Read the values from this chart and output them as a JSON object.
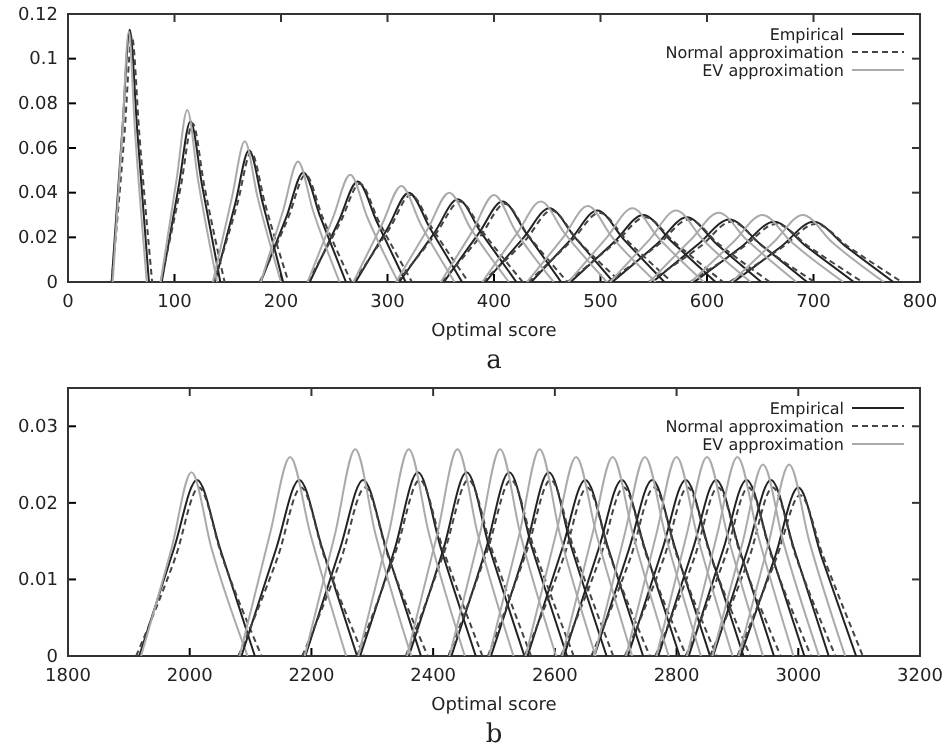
{
  "chart_data": [
    {
      "type": "line",
      "xlabel": "Optimal score",
      "annotations": [
        "a"
      ],
      "xlim": [
        0,
        800
      ],
      "xticks": [
        0,
        100,
        200,
        300,
        400,
        500,
        600,
        700,
        800
      ],
      "ylim": [
        0,
        0.12
      ],
      "yticks": [
        0,
        0.02,
        0.04,
        0.06,
        0.08,
        0.1,
        0.12
      ],
      "legend": "top right",
      "series": [
        {
          "name": "Empirical",
          "color": "#222222",
          "line_style": "solid",
          "x": [
            41,
            51,
            58,
            65,
            76
          ],
          "values": [
            0,
            0.068,
            0.113,
            0.068,
            0
          ]
        },
        {
          "name": "Normal approximation",
          "color": "#444444",
          "line_style": "dashed",
          "x": [
            41,
            53,
            60,
            67,
            79
          ],
          "values": [
            0,
            0.066,
            0.11,
            0.066,
            0
          ]
        },
        {
          "name": "EV approximation",
          "color": "#aaaaaa",
          "line_style": "solid",
          "x": [
            42,
            51,
            57,
            63,
            74
          ],
          "values": [
            0,
            0.067,
            0.112,
            0.067,
            0
          ]
        },
        {
          "color": "#222222",
          "line_style": "solid",
          "x": [
            88,
            104,
            115,
            126,
            143
          ],
          "values": [
            0,
            0.043,
            0.072,
            0.043,
            0
          ]
        },
        {
          "color": "#222222",
          "line_style": "solid",
          "x": [
            138,
            157,
            170,
            183,
            202
          ],
          "values": [
            0,
            0.035,
            0.059,
            0.035,
            0
          ]
        },
        {
          "color": "#222222",
          "line_style": "solid",
          "x": [
            181,
            205,
            221,
            237,
            261
          ],
          "values": [
            0,
            0.029,
            0.049,
            0.029,
            0
          ]
        },
        {
          "color": "#222222",
          "line_style": "solid",
          "x": [
            227,
            254,
            272,
            290,
            317
          ],
          "values": [
            0,
            0.027,
            0.045,
            0.027,
            0
          ]
        },
        {
          "color": "#222222",
          "line_style": "solid",
          "x": [
            270,
            300,
            320,
            340,
            370
          ],
          "values": [
            0,
            0.024,
            0.04,
            0.024,
            0
          ]
        },
        {
          "color": "#222222",
          "line_style": "solid",
          "x": [
            311,
            344,
            366,
            388,
            421
          ],
          "values": [
            0,
            0.022,
            0.037,
            0.022,
            0
          ]
        },
        {
          "color": "#222222",
          "line_style": "solid",
          "x": [
            353,
            386,
            408,
            430,
            463
          ],
          "values": [
            0,
            0.022,
            0.036,
            0.022,
            0
          ]
        },
        {
          "color": "#222222",
          "line_style": "solid",
          "x": [
            392,
            428,
            452,
            476,
            512
          ],
          "values": [
            0,
            0.02,
            0.033,
            0.02,
            0
          ]
        },
        {
          "color": "#222222",
          "line_style": "solid",
          "x": [
            435,
            472,
            497,
            522,
            560
          ],
          "values": [
            0,
            0.019,
            0.032,
            0.019,
            0
          ]
        },
        {
          "color": "#222222",
          "line_style": "solid",
          "x": [
            472,
            513,
            540,
            567,
            608
          ],
          "values": [
            0,
            0.018,
            0.03,
            0.018,
            0
          ]
        },
        {
          "color": "#222222",
          "line_style": "solid",
          "x": [
            511,
            553,
            581,
            609,
            651
          ],
          "values": [
            0,
            0.017,
            0.029,
            0.017,
            0
          ]
        },
        {
          "color": "#222222",
          "line_style": "solid",
          "x": [
            549,
            592,
            621,
            650,
            694
          ],
          "values": [
            0,
            0.017,
            0.028,
            0.017,
            0
          ]
        },
        {
          "color": "#222222",
          "line_style": "solid",
          "x": [
            588,
            633,
            663,
            693,
            738
          ],
          "values": [
            0,
            0.016,
            0.027,
            0.016,
            0
          ]
        },
        {
          "color": "#222222",
          "line_style": "solid",
          "x": [
            625,
            670,
            700,
            730,
            775
          ],
          "values": [
            0,
            0.016,
            0.027,
            0.016,
            0
          ]
        },
        {
          "color": "#444444",
          "line_style": "dashed",
          "x": [
            87,
            106,
            117,
            128,
            147
          ],
          "values": [
            0,
            0.043,
            0.071,
            0.043,
            0
          ]
        },
        {
          "color": "#444444",
          "line_style": "dashed",
          "x": [
            137,
            159,
            172,
            185,
            207
          ],
          "values": [
            0,
            0.035,
            0.058,
            0.035,
            0
          ]
        },
        {
          "color": "#444444",
          "line_style": "dashed",
          "x": [
            180,
            207,
            223,
            239,
            266
          ],
          "values": [
            0,
            0.029,
            0.048,
            0.029,
            0
          ]
        },
        {
          "color": "#444444",
          "line_style": "dashed",
          "x": [
            225,
            256,
            274,
            292,
            323
          ],
          "values": [
            0,
            0.027,
            0.044,
            0.027,
            0
          ]
        },
        {
          "color": "#444444",
          "line_style": "dashed",
          "x": [
            268,
            302,
            322,
            342,
            376
          ],
          "values": [
            0,
            0.024,
            0.039,
            0.024,
            0
          ]
        },
        {
          "color": "#444444",
          "line_style": "dashed",
          "x": [
            309,
            346,
            368,
            390,
            427
          ],
          "values": [
            0,
            0.022,
            0.036,
            0.022,
            0
          ]
        },
        {
          "color": "#444444",
          "line_style": "dashed",
          "x": [
            351,
            388,
            410,
            432,
            469
          ],
          "values": [
            0,
            0.021,
            0.035,
            0.021,
            0
          ]
        },
        {
          "color": "#444444",
          "line_style": "dashed",
          "x": [
            389,
            430,
            454,
            478,
            519
          ],
          "values": [
            0,
            0.019,
            0.032,
            0.019,
            0
          ]
        },
        {
          "color": "#444444",
          "line_style": "dashed",
          "x": [
            432,
            474,
            499,
            524,
            567
          ],
          "values": [
            0,
            0.019,
            0.031,
            0.019,
            0
          ]
        },
        {
          "color": "#444444",
          "line_style": "dashed",
          "x": [
            469,
            515,
            542,
            569,
            615
          ],
          "values": [
            0,
            0.018,
            0.029,
            0.018,
            0
          ]
        },
        {
          "color": "#444444",
          "line_style": "dashed",
          "x": [
            507,
            555,
            583,
            611,
            659
          ],
          "values": [
            0,
            0.017,
            0.028,
            0.017,
            0
          ]
        },
        {
          "color": "#444444",
          "line_style": "dashed",
          "x": [
            545,
            594,
            623,
            652,
            701
          ],
          "values": [
            0,
            0.016,
            0.027,
            0.016,
            0
          ]
        },
        {
          "color": "#444444",
          "line_style": "dashed",
          "x": [
            584,
            635,
            665,
            695,
            746
          ],
          "values": [
            0,
            0.016,
            0.026,
            0.016,
            0
          ]
        },
        {
          "color": "#444444",
          "line_style": "dashed",
          "x": [
            621,
            672,
            702,
            732,
            783
          ],
          "values": [
            0,
            0.016,
            0.026,
            0.016,
            0
          ]
        },
        {
          "color": "#aaaaaa",
          "line_style": "solid",
          "x": [
            87,
            102,
            112,
            122,
            140
          ],
          "values": [
            0,
            0.046,
            0.077,
            0.046,
            0
          ]
        },
        {
          "color": "#aaaaaa",
          "line_style": "solid",
          "x": [
            136,
            154,
            166,
            178,
            200
          ],
          "values": [
            0,
            0.038,
            0.063,
            0.038,
            0
          ]
        },
        {
          "color": "#aaaaaa",
          "line_style": "solid",
          "x": [
            181,
            202,
            216,
            230,
            255
          ],
          "values": [
            0,
            0.032,
            0.054,
            0.032,
            0
          ]
        },
        {
          "color": "#aaaaaa",
          "line_style": "solid",
          "x": [
            225,
            249,
            265,
            281,
            310
          ],
          "values": [
            0,
            0.029,
            0.048,
            0.029,
            0
          ]
        },
        {
          "color": "#aaaaaa",
          "line_style": "solid",
          "x": [
            268,
            295,
            313,
            331,
            363
          ],
          "values": [
            0,
            0.026,
            0.043,
            0.026,
            0
          ]
        },
        {
          "color": "#aaaaaa",
          "line_style": "solid",
          "x": [
            308,
            338,
            358,
            378,
            414
          ],
          "values": [
            0,
            0.024,
            0.04,
            0.024,
            0
          ]
        },
        {
          "color": "#aaaaaa",
          "line_style": "solid",
          "x": [
            350,
            380,
            400,
            420,
            456
          ],
          "values": [
            0,
            0.023,
            0.039,
            0.023,
            0
          ]
        },
        {
          "color": "#aaaaaa",
          "line_style": "solid",
          "x": [
            389,
            422,
            444,
            466,
            506
          ],
          "values": [
            0,
            0.022,
            0.036,
            0.022,
            0
          ]
        },
        {
          "color": "#aaaaaa",
          "line_style": "solid",
          "x": [
            431,
            465,
            488,
            511,
            552
          ],
          "values": [
            0,
            0.02,
            0.034,
            0.02,
            0
          ]
        },
        {
          "color": "#aaaaaa",
          "line_style": "solid",
          "x": [
            470,
            506,
            530,
            554,
            597
          ],
          "values": [
            0,
            0.02,
            0.033,
            0.02,
            0
          ]
        },
        {
          "color": "#aaaaaa",
          "line_style": "solid",
          "x": [
            509,
            546,
            571,
            596,
            641
          ],
          "values": [
            0,
            0.019,
            0.032,
            0.019,
            0
          ]
        },
        {
          "color": "#aaaaaa",
          "line_style": "solid",
          "x": [
            546,
            585,
            611,
            637,
            684
          ],
          "values": [
            0,
            0.019,
            0.031,
            0.019,
            0
          ]
        },
        {
          "color": "#aaaaaa",
          "line_style": "solid",
          "x": [
            585,
            625,
            652,
            679,
            728
          ],
          "values": [
            0,
            0.018,
            0.03,
            0.018,
            0
          ]
        },
        {
          "color": "#aaaaaa",
          "line_style": "solid",
          "x": [
            623,
            663,
            690,
            717,
            766
          ],
          "values": [
            0,
            0.018,
            0.03,
            0.018,
            0
          ]
        }
      ]
    },
    {
      "type": "line",
      "xlabel": "Optimal score",
      "annotations": [
        "b"
      ],
      "xlim": [
        1800,
        3200
      ],
      "xticks": [
        1800,
        2000,
        2200,
        2400,
        2600,
        2800,
        3000,
        3200
      ],
      "ylim": [
        0,
        0.035
      ],
      "yticks": [
        0,
        0.01,
        0.02,
        0.03
      ],
      "legend": "top right",
      "series": [
        {
          "name": "Empirical",
          "color": "#222222",
          "line_style": "solid",
          "x": [
            1917,
            1974,
            2012,
            2050,
            2107
          ],
          "values": [
            0,
            0.014,
            0.023,
            0.014,
            0
          ]
        },
        {
          "name": "Normal approximation",
          "color": "#444444",
          "line_style": "dashed",
          "x": [
            1912,
            1977,
            2015,
            2053,
            2118
          ],
          "values": [
            0,
            0.013,
            0.022,
            0.013,
            0
          ]
        },
        {
          "name": "EV approximation",
          "color": "#aaaaaa",
          "line_style": "solid",
          "x": [
            1920,
            1970,
            2003,
            2036,
            2095
          ],
          "values": [
            0,
            0.014,
            0.024,
            0.014,
            0
          ]
        },
        {
          "color": "#222222",
          "line_style": "solid",
          "x": [
            2085,
            2142,
            2180,
            2218,
            2275
          ],
          "values": [
            0,
            0.014,
            0.023,
            0.014,
            0
          ]
        },
        {
          "color": "#222222",
          "line_style": "solid",
          "x": [
            2190,
            2247,
            2285,
            2323,
            2380
          ],
          "values": [
            0,
            0.014,
            0.023,
            0.014,
            0
          ]
        },
        {
          "color": "#222222",
          "line_style": "solid",
          "x": [
            2280,
            2337,
            2375,
            2413,
            2470
          ],
          "values": [
            0,
            0.014,
            0.024,
            0.014,
            0
          ]
        },
        {
          "color": "#222222",
          "line_style": "solid",
          "x": [
            2360,
            2417,
            2455,
            2493,
            2550
          ],
          "values": [
            0,
            0.014,
            0.024,
            0.014,
            0
          ]
        },
        {
          "color": "#222222",
          "line_style": "solid",
          "x": [
            2430,
            2487,
            2525,
            2563,
            2620
          ],
          "values": [
            0,
            0.014,
            0.024,
            0.014,
            0
          ]
        },
        {
          "color": "#222222",
          "line_style": "solid",
          "x": [
            2495,
            2552,
            2590,
            2628,
            2685
          ],
          "values": [
            0,
            0.014,
            0.024,
            0.014,
            0
          ]
        },
        {
          "color": "#222222",
          "line_style": "solid",
          "x": [
            2555,
            2612,
            2650,
            2688,
            2745
          ],
          "values": [
            0,
            0.014,
            0.023,
            0.014,
            0
          ]
        },
        {
          "color": "#222222",
          "line_style": "solid",
          "x": [
            2615,
            2672,
            2710,
            2748,
            2805
          ],
          "values": [
            0,
            0.014,
            0.023,
            0.014,
            0
          ]
        },
        {
          "color": "#222222",
          "line_style": "solid",
          "x": [
            2665,
            2722,
            2760,
            2798,
            2855
          ],
          "values": [
            0,
            0.014,
            0.023,
            0.014,
            0
          ]
        },
        {
          "color": "#222222",
          "line_style": "solid",
          "x": [
            2720,
            2777,
            2815,
            2853,
            2910
          ],
          "values": [
            0,
            0.014,
            0.023,
            0.014,
            0
          ]
        },
        {
          "color": "#222222",
          "line_style": "solid",
          "x": [
            2770,
            2827,
            2865,
            2903,
            2960
          ],
          "values": [
            0,
            0.014,
            0.023,
            0.014,
            0
          ]
        },
        {
          "color": "#222222",
          "line_style": "solid",
          "x": [
            2820,
            2877,
            2915,
            2953,
            3010
          ],
          "values": [
            0,
            0.014,
            0.023,
            0.014,
            0
          ]
        },
        {
          "color": "#222222",
          "line_style": "solid",
          "x": [
            2860,
            2917,
            2955,
            2993,
            3050
          ],
          "values": [
            0,
            0.014,
            0.023,
            0.014,
            0
          ]
        },
        {
          "color": "#222222",
          "line_style": "solid",
          "x": [
            2905,
            2962,
            3000,
            3038,
            3095
          ],
          "values": [
            0,
            0.013,
            0.022,
            0.013,
            0
          ]
        },
        {
          "color": "#444444",
          "line_style": "dashed",
          "x": [
            2080,
            2145,
            2183,
            2221,
            2286
          ],
          "values": [
            0,
            0.013,
            0.022,
            0.013,
            0
          ]
        },
        {
          "color": "#444444",
          "line_style": "dashed",
          "x": [
            2185,
            2250,
            2288,
            2326,
            2391
          ],
          "values": [
            0,
            0.013,
            0.022,
            0.013,
            0
          ]
        },
        {
          "color": "#444444",
          "line_style": "dashed",
          "x": [
            2275,
            2340,
            2378,
            2416,
            2481
          ],
          "values": [
            0,
            0.014,
            0.023,
            0.014,
            0
          ]
        },
        {
          "color": "#444444",
          "line_style": "dashed",
          "x": [
            2355,
            2420,
            2458,
            2496,
            2561
          ],
          "values": [
            0,
            0.014,
            0.023,
            0.014,
            0
          ]
        },
        {
          "color": "#444444",
          "line_style": "dashed",
          "x": [
            2425,
            2490,
            2528,
            2566,
            2631
          ],
          "values": [
            0,
            0.014,
            0.023,
            0.014,
            0
          ]
        },
        {
          "color": "#444444",
          "line_style": "dashed",
          "x": [
            2490,
            2555,
            2593,
            2631,
            2696
          ],
          "values": [
            0,
            0.014,
            0.023,
            0.014,
            0
          ]
        },
        {
          "color": "#444444",
          "line_style": "dashed",
          "x": [
            2550,
            2615,
            2653,
            2691,
            2756
          ],
          "values": [
            0,
            0.013,
            0.022,
            0.013,
            0
          ]
        },
        {
          "color": "#444444",
          "line_style": "dashed",
          "x": [
            2610,
            2675,
            2713,
            2751,
            2816
          ],
          "values": [
            0,
            0.013,
            0.022,
            0.013,
            0
          ]
        },
        {
          "color": "#444444",
          "line_style": "dashed",
          "x": [
            2660,
            2725,
            2763,
            2801,
            2866
          ],
          "values": [
            0,
            0.013,
            0.022,
            0.013,
            0
          ]
        },
        {
          "color": "#444444",
          "line_style": "dashed",
          "x": [
            2715,
            2780,
            2818,
            2856,
            2921
          ],
          "values": [
            0,
            0.013,
            0.022,
            0.013,
            0
          ]
        },
        {
          "color": "#444444",
          "line_style": "dashed",
          "x": [
            2765,
            2830,
            2868,
            2906,
            2971
          ],
          "values": [
            0,
            0.013,
            0.022,
            0.013,
            0
          ]
        },
        {
          "color": "#444444",
          "line_style": "dashed",
          "x": [
            2815,
            2880,
            2918,
            2956,
            3021
          ],
          "values": [
            0,
            0.013,
            0.022,
            0.013,
            0
          ]
        },
        {
          "color": "#444444",
          "line_style": "dashed",
          "x": [
            2855,
            2920,
            2958,
            2996,
            3061
          ],
          "values": [
            0,
            0.013,
            0.022,
            0.013,
            0
          ]
        },
        {
          "color": "#444444",
          "line_style": "dashed",
          "x": [
            2900,
            2965,
            3003,
            3041,
            3106
          ],
          "values": [
            0,
            0.013,
            0.021,
            0.013,
            0
          ]
        },
        {
          "color": "#aaaaaa",
          "line_style": "solid",
          "x": [
            2082,
            2132,
            2165,
            2198,
            2257
          ],
          "values": [
            0,
            0.016,
            0.026,
            0.016,
            0
          ]
        },
        {
          "color": "#aaaaaa",
          "line_style": "solid",
          "x": [
            2189,
            2239,
            2272,
            2305,
            2364
          ],
          "values": [
            0,
            0.016,
            0.027,
            0.016,
            0
          ]
        },
        {
          "color": "#aaaaaa",
          "line_style": "solid",
          "x": [
            2277,
            2327,
            2360,
            2393,
            2452
          ],
          "values": [
            0,
            0.016,
            0.027,
            0.016,
            0
          ]
        },
        {
          "color": "#aaaaaa",
          "line_style": "solid",
          "x": [
            2357,
            2407,
            2440,
            2473,
            2532
          ],
          "values": [
            0,
            0.016,
            0.027,
            0.016,
            0
          ]
        },
        {
          "color": "#aaaaaa",
          "line_style": "solid",
          "x": [
            2427,
            2477,
            2510,
            2543,
            2602
          ],
          "values": [
            0,
            0.016,
            0.027,
            0.016,
            0
          ]
        },
        {
          "color": "#aaaaaa",
          "line_style": "solid",
          "x": [
            2492,
            2542,
            2575,
            2608,
            2667
          ],
          "values": [
            0,
            0.016,
            0.027,
            0.016,
            0
          ]
        },
        {
          "color": "#aaaaaa",
          "line_style": "solid",
          "x": [
            2552,
            2602,
            2635,
            2668,
            2727
          ],
          "values": [
            0,
            0.016,
            0.026,
            0.016,
            0
          ]
        },
        {
          "color": "#aaaaaa",
          "line_style": "solid",
          "x": [
            2612,
            2662,
            2695,
            2728,
            2787
          ],
          "values": [
            0,
            0.016,
            0.026,
            0.016,
            0
          ]
        },
        {
          "color": "#aaaaaa",
          "line_style": "solid",
          "x": [
            2665,
            2715,
            2748,
            2781,
            2840
          ],
          "values": [
            0,
            0.016,
            0.026,
            0.016,
            0
          ]
        },
        {
          "color": "#aaaaaa",
          "line_style": "solid",
          "x": [
            2717,
            2767,
            2800,
            2833,
            2892
          ],
          "values": [
            0,
            0.016,
            0.026,
            0.016,
            0
          ]
        },
        {
          "color": "#aaaaaa",
          "line_style": "solid",
          "x": [
            2767,
            2817,
            2850,
            2883,
            2942
          ],
          "values": [
            0,
            0.016,
            0.026,
            0.016,
            0
          ]
        },
        {
          "color": "#aaaaaa",
          "line_style": "solid",
          "x": [
            2817,
            2867,
            2900,
            2933,
            2992
          ],
          "values": [
            0,
            0.016,
            0.026,
            0.016,
            0
          ]
        },
        {
          "color": "#aaaaaa",
          "line_style": "solid",
          "x": [
            2859,
            2909,
            2942,
            2975,
            3034
          ],
          "values": [
            0,
            0.015,
            0.025,
            0.015,
            0
          ]
        },
        {
          "color": "#aaaaaa",
          "line_style": "solid",
          "x": [
            2902,
            2952,
            2985,
            3018,
            3077
          ],
          "values": [
            0,
            0.015,
            0.025,
            0.015,
            0
          ]
        }
      ]
    }
  ]
}
